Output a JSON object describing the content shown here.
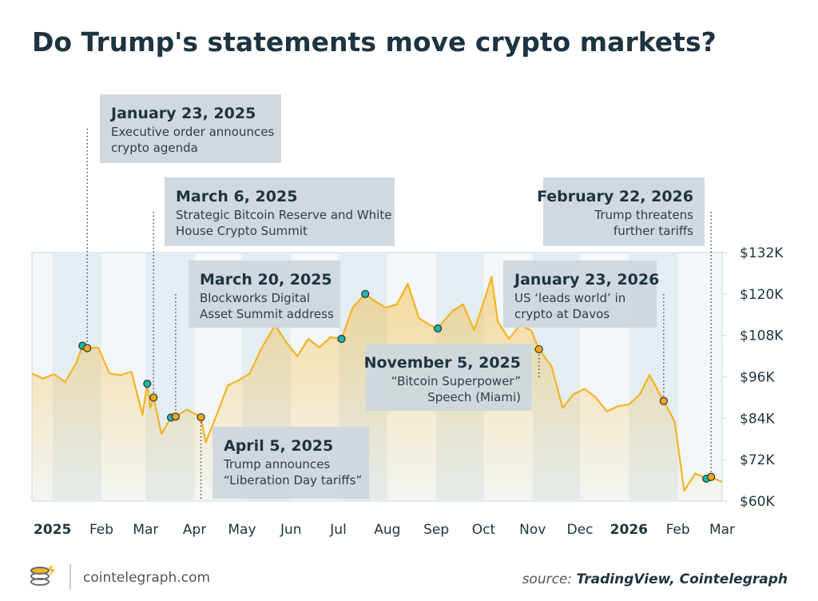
{
  "chart_data": {
    "type": "line",
    "title": "Do Trump's statements move crypto markets?",
    "xlim": [
      "2024-12-19",
      "2026-03-01"
    ],
    "xticks": [
      {
        "value": "2025-01-01",
        "label": "2025"
      },
      {
        "value": "2025-02-01",
        "label": "Feb"
      },
      {
        "value": "2025-03-01",
        "label": "Mar"
      },
      {
        "value": "2025-04-01",
        "label": "Apr"
      },
      {
        "value": "2025-05-01",
        "label": "May"
      },
      {
        "value": "2025-06-01",
        "label": "Jun"
      },
      {
        "value": "2025-07-01",
        "label": "Jul"
      },
      {
        "value": "2025-08-01",
        "label": "Aug"
      },
      {
        "value": "2025-09-01",
        "label": "Sep"
      },
      {
        "value": "2025-10-01",
        "label": "Oct"
      },
      {
        "value": "2025-11-01",
        "label": "Nov"
      },
      {
        "value": "2025-12-01",
        "label": "Dec"
      },
      {
        "value": "2026-01-01",
        "label": "2026"
      },
      {
        "value": "2026-02-01",
        "label": "Feb"
      },
      {
        "value": "2026-03-01",
        "label": "Mar"
      }
    ],
    "ylim": [
      60000,
      132000
    ],
    "yticks": [
      {
        "value": 60000,
        "label": "$60K"
      },
      {
        "value": 72000,
        "label": "$72K"
      },
      {
        "value": 84000,
        "label": "$84K"
      },
      {
        "value": 96000,
        "label": "$96K"
      },
      {
        "value": 108000,
        "label": "$108K"
      },
      {
        "value": 120000,
        "label": "$120K"
      },
      {
        "value": 132000,
        "label": "$132K"
      }
    ],
    "series": [
      {
        "color": "#f5b324",
        "x": [
          "2024-12-19",
          "2024-12-26",
          "2025-01-02",
          "2025-01-09",
          "2025-01-16",
          "2025-01-20",
          "2025-01-23",
          "2025-01-30",
          "2025-02-06",
          "2025-02-13",
          "2025-02-20",
          "2025-02-27",
          "2025-03-02",
          "2025-03-04",
          "2025-03-06",
          "2025-03-11",
          "2025-03-17",
          "2025-03-20",
          "2025-03-27",
          "2025-04-05",
          "2025-04-08",
          "2025-04-15",
          "2025-04-22",
          "2025-04-29",
          "2025-05-06",
          "2025-05-13",
          "2025-05-22",
          "2025-05-29",
          "2025-06-05",
          "2025-06-12",
          "2025-06-19",
          "2025-06-26",
          "2025-07-03",
          "2025-07-10",
          "2025-07-18",
          "2025-07-24",
          "2025-07-31",
          "2025-08-07",
          "2025-08-14",
          "2025-08-21",
          "2025-08-28",
          "2025-09-02",
          "2025-09-11",
          "2025-09-18",
          "2025-09-25",
          "2025-10-02",
          "2025-10-06",
          "2025-10-10",
          "2025-10-17",
          "2025-10-24",
          "2025-10-31",
          "2025-11-05",
          "2025-11-13",
          "2025-11-20",
          "2025-11-27",
          "2025-12-04",
          "2025-12-11",
          "2025-12-18",
          "2025-12-25",
          "2026-01-01",
          "2026-01-08",
          "2026-01-14",
          "2026-01-23",
          "2026-01-30",
          "2026-02-05",
          "2026-02-12",
          "2026-02-19",
          "2026-02-22",
          "2026-03-01"
        ],
        "values": [
          97000,
          95500,
          96800,
          94500,
          100000,
          105000,
          104300,
          104500,
          97000,
          96500,
          97500,
          85000,
          94000,
          87000,
          90000,
          79500,
          84200,
          84500,
          86500,
          84300,
          77000,
          85000,
          93500,
          95000,
          97000,
          104000,
          111000,
          106000,
          102000,
          107000,
          104500,
          107500,
          107000,
          116000,
          120000,
          118000,
          116000,
          117000,
          123000,
          113000,
          111000,
          110000,
          115000,
          117000,
          109500,
          119000,
          125000,
          112000,
          107000,
          111000,
          109500,
          104000,
          99000,
          87000,
          91000,
          92500,
          90000,
          86000,
          87500,
          88000,
          91000,
          96500,
          89000,
          83000,
          63000,
          68000,
          66500,
          67000,
          65500
        ]
      }
    ],
    "points": [
      {
        "x": "2025-01-20",
        "value": 105000,
        "color": "#1fb5a5"
      },
      {
        "x": "2025-01-23",
        "value": 104300,
        "color": "#f0a81c"
      },
      {
        "x": "2025-03-02",
        "value": 94000,
        "color": "#1fb5a5"
      },
      {
        "x": "2025-03-06",
        "value": 90000,
        "color": "#f0a81c"
      },
      {
        "x": "2025-03-17",
        "value": 84200,
        "color": "#1fb5a5"
      },
      {
        "x": "2025-03-20",
        "value": 84500,
        "color": "#f0a81c"
      },
      {
        "x": "2025-04-05",
        "value": 84300,
        "color": "#f0a81c"
      },
      {
        "x": "2025-07-03",
        "value": 107000,
        "color": "#1fb5a5"
      },
      {
        "x": "2025-07-18",
        "value": 120000,
        "color": "#1fb5a5"
      },
      {
        "x": "2025-09-02",
        "value": 110000,
        "color": "#1fb5a5"
      },
      {
        "x": "2025-11-05",
        "value": 104000,
        "color": "#f0a81c"
      },
      {
        "x": "2026-01-23",
        "value": 89000,
        "color": "#f0a81c"
      },
      {
        "x": "2026-02-19",
        "value": 66500,
        "color": "#1fb5a5"
      },
      {
        "x": "2026-02-22",
        "value": 67000,
        "color": "#f0a81c"
      }
    ],
    "annotations": [
      {
        "title": "January 23, 2025",
        "lines": [
          "Executive order announces",
          "crypto agenda"
        ]
      },
      {
        "title": "March 6, 2025",
        "lines": [
          "Strategic Bitcoin Reserve and White",
          "House Crypto Summit"
        ]
      },
      {
        "title": "March 20, 2025",
        "lines": [
          "Blockworks Digital",
          "Asset Summit address"
        ]
      },
      {
        "title": "April 5, 2025",
        "lines": [
          "Trump announces",
          "“Liberation Day tariffs”"
        ]
      },
      {
        "title": "November 5, 2025",
        "lines": [
          "“Bitcoin Superpower”",
          "Speech (Miami)"
        ]
      },
      {
        "title": "January 23, 2026",
        "lines": [
          "US ‘leads world’ in",
          "crypto at Davos"
        ]
      },
      {
        "title": "February 22, 2026",
        "lines": [
          "Trump threatens",
          "further tariffs"
        ]
      }
    ],
    "brand": "cointelegraph.com",
    "source_prefix": "source:",
    "source_names": "TradingView, Cointelegraph"
  }
}
